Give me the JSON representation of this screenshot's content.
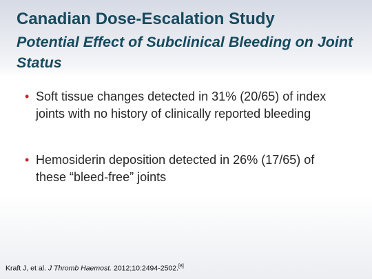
{
  "header": {
    "title": "Canadian Dose-Escalation Study",
    "subtitle": "Potential Effect of Subclinical Bleeding on Joint Status"
  },
  "bullets": [
    "Soft tissue changes detected in 31% (20/65) of index joints with no history of clinically reported bleeding",
    "Hemosiderin deposition detected in 26% (17/65) of these “bleed-free” joints"
  ],
  "citation": {
    "authors": "Kraft J, et al.",
    "journal": "J Thromb Haemost.",
    "details": "2012;10:2494-2502.",
    "ref": "[8]"
  }
}
